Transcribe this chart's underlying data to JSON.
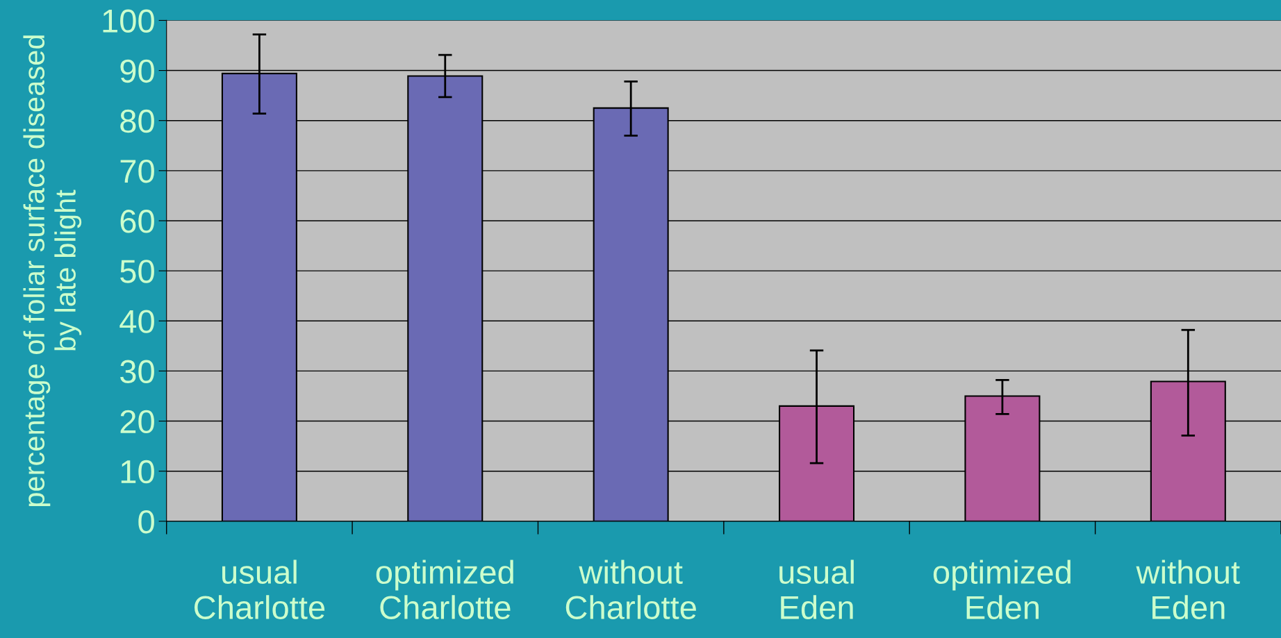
{
  "chart_data": {
    "type": "bar",
    "ylabel": "percentage of foliar surface diseased\nby late blight",
    "categories": [
      "usual\nCharlotte",
      "optimized\nCharlotte",
      "without\nCharlotte",
      "usual\nEden",
      "optimized\nEden",
      "without\nEden"
    ],
    "values": [
      89.4,
      88.9,
      82.5,
      23.0,
      25.0,
      27.9
    ],
    "errors": [
      [
        81.4,
        97.2
      ],
      [
        84.7,
        93.1
      ],
      [
        77.0,
        87.8
      ],
      [
        11.6,
        34.1
      ],
      [
        21.4,
        28.2
      ],
      [
        17.1,
        38.2
      ]
    ],
    "colors": [
      "#6a6ab4",
      "#6a6ab4",
      "#6a6ab4",
      "#b25a9a",
      "#b25a9a",
      "#b25a9a"
    ],
    "ylim": [
      0,
      100
    ],
    "yticks": [
      0,
      10,
      20,
      30,
      40,
      50,
      60,
      70,
      80,
      90,
      100
    ],
    "grid": "y"
  }
}
